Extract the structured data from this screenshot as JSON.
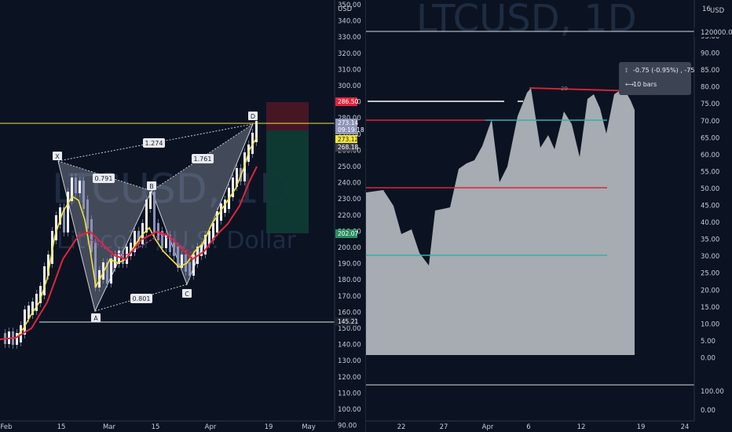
{
  "left_chart": {
    "watermark_symbol": "LTCUSD, 1D",
    "watermark_name": "Litecoin / U.S. Dollar",
    "axis_currency": "USD",
    "price_ticks": [
      "350.00",
      "340.00",
      "330.00",
      "320.00",
      "310.00",
      "300.00",
      "290.00",
      "280.00",
      "270.00",
      "260.00",
      "250.00",
      "240.00",
      "230.00",
      "220.00",
      "210.00",
      "200.00",
      "190.00",
      "180.00",
      "170.00",
      "160.00",
      "150.00",
      "140.00",
      "130.00",
      "120.00",
      "110.00",
      "100.00",
      "90.00"
    ],
    "price_tags": [
      {
        "label": "286.50",
        "color": "#e0243c"
      },
      {
        "label": "273.14",
        "color": "#8f95b8"
      },
      {
        "label": "09:19:18",
        "color": "#8f95b8"
      },
      {
        "label": "273.12",
        "color": "#f5e43a"
      },
      {
        "label": "268.18",
        "color": "#3b3f4a"
      },
      {
        "label": "202.07",
        "color": "#2a8f63"
      },
      {
        "label": "145.21",
        "color": "#1f2433"
      }
    ],
    "date_ticks": [
      "Feb",
      "15",
      "Mar",
      "15",
      "Apr",
      "19",
      "May"
    ],
    "pattern_points": [
      "X",
      "A",
      "B",
      "C",
      "D"
    ],
    "ratios": [
      "1.274",
      "0.791",
      "1.761",
      "0.801"
    ]
  },
  "right_chart": {
    "watermark_symbol": "LTCUSD, 1D",
    "top_tag": "16",
    "top_currency": "USD",
    "level_label": "120000.00",
    "rsi_ticks": [
      "95.00",
      "90.00",
      "85.00",
      "80.00",
      "75.00",
      "70.00",
      "65.00",
      "60.00",
      "55.00",
      "50.00",
      "45.00",
      "40.00",
      "35.00",
      "30.00",
      "25.00",
      "20.00",
      "15.00",
      "10.00",
      "5.00",
      "0.00"
    ],
    "lower_ticks": [
      "100.00",
      "0.00"
    ],
    "date_ticks": [
      "22",
      "27",
      "Apr",
      "6",
      "12",
      "19",
      "24"
    ],
    "annotation": "29"
  },
  "tooltip": {
    "change": "-0.75 (-0.95%) , -75",
    "bars": "10 bars"
  },
  "colors": {
    "background": "#0b1322",
    "area_fill": "#a7abb2",
    "red_line": "#e0243c",
    "teal_line": "#2ab3b0",
    "yellow_line": "#f2e33a"
  }
}
